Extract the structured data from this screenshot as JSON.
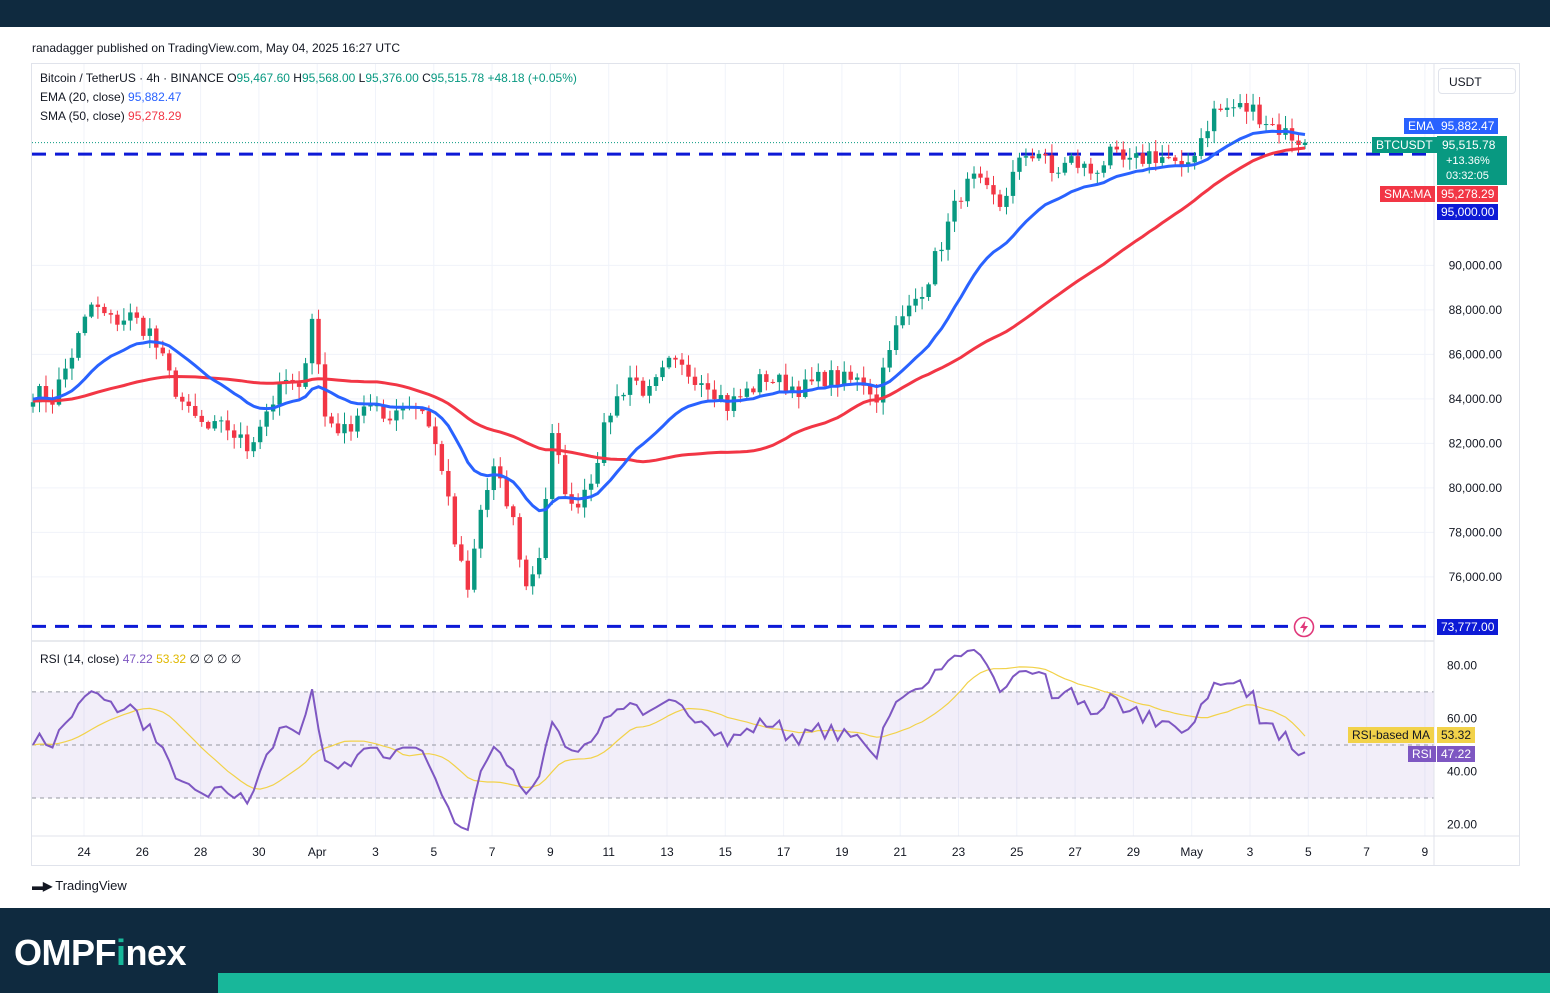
{
  "publisher_line": "ranadagger published on TradingView.com, May 04, 2025 16:27 UTC",
  "legend": {
    "symbol": "Bitcoin / TetherUS · 4h · BINANCE",
    "o_label": "O",
    "o": "95,467.60",
    "h_label": "H",
    "h": "95,568.00",
    "l_label": "L",
    "l": "95,376.00",
    "c_label": "C",
    "c": "95,515.78",
    "change": "+48.18 (+0.05%)",
    "ema_label": "EMA (20, close)",
    "ema_value": "95,882.47",
    "sma_label": "SMA (50, close)",
    "sma_value": "95,278.29",
    "rsi_label": "RSI (14, close)",
    "rsi_value": "47.22",
    "rsi_ma_value": "53.32",
    "rsi_extra": "∅ ∅ ∅ ∅"
  },
  "currency_unit": "USDT",
  "price_tags": {
    "ema_name": "EMA",
    "ema_value": "95,882.47",
    "symbol_name": "BTCUSDT",
    "last_price": "95,515.78",
    "pct_change": "+13.36%",
    "countdown": "03:32:05",
    "sma_name": "SMA:MA",
    "sma_value": "95,278.29",
    "resistance": "95,000.00",
    "support": "73,777.00",
    "rsi_ma_name": "RSI-based MA",
    "rsi_ma_value": "53.32",
    "rsi_name": "RSI",
    "rsi_value": "47.22"
  },
  "watermark": "TradingView",
  "brand": {
    "part1": "OMPF",
    "part2": "i",
    "part3": "nex"
  },
  "colors": {
    "bull": "#089981",
    "bear": "#f23645",
    "ema": "#2962ff",
    "sma": "#f23645",
    "level_line": "#0d1ad6",
    "rsi": "#7e57c2",
    "rsi_ma": "#f2d24a",
    "footer_bg": "#0f2a3f",
    "footer_accent": "#18b79a"
  },
  "chart_data": [
    {
      "type": "candlestick",
      "timeframe": "4h",
      "y_range": [
        74500,
        98000
      ],
      "y_ticks": [
        76000,
        78000,
        80000,
        82000,
        84000,
        86000,
        88000,
        90000
      ],
      "x_tick_labels": [
        "24",
        "26",
        "28",
        "30",
        "Apr",
        "3",
        "5",
        "7",
        "9",
        "11",
        "13",
        "15",
        "17",
        "19",
        "21",
        "23",
        "25",
        "27",
        "29",
        "May",
        "3",
        "5",
        "7",
        "9"
      ],
      "horizontal_levels": [
        95000,
        73777
      ],
      "price_path": [
        [
          0,
          84300
        ],
        [
          3,
          84000
        ],
        [
          6,
          86000
        ],
        [
          9,
          88200
        ],
        [
          12,
          87500
        ],
        [
          15,
          87700
        ],
        [
          18,
          87000
        ],
        [
          21,
          85000
        ],
        [
          24,
          83300
        ],
        [
          27,
          82600
        ],
        [
          30,
          82700
        ],
        [
          33,
          81800
        ],
        [
          36,
          83500
        ],
        [
          39,
          84800
        ],
        [
          41,
          84200
        ],
        [
          43,
          87800
        ],
        [
          45,
          83200
        ],
        [
          48,
          82500
        ],
        [
          51,
          83800
        ],
        [
          54,
          83100
        ],
        [
          57,
          83800
        ],
        [
          60,
          83600
        ],
        [
          63,
          81000
        ],
        [
          65,
          77500
        ],
        [
          67,
          75300
        ],
        [
          69,
          79000
        ],
        [
          71,
          80800
        ],
        [
          74,
          78500
        ],
        [
          76,
          75500
        ],
        [
          78,
          77000
        ],
        [
          80,
          82200
        ],
        [
          83,
          79000
        ],
        [
          86,
          80500
        ],
        [
          89,
          83500
        ],
        [
          92,
          85000
        ],
        [
          95,
          84200
        ],
        [
          98,
          85500
        ],
        [
          101,
          85200
        ],
        [
          104,
          84800
        ],
        [
          107,
          83700
        ],
        [
          110,
          84300
        ],
        [
          113,
          85000
        ],
        [
          116,
          84600
        ],
        [
          119,
          84500
        ],
        [
          122,
          85000
        ],
        [
          125,
          84800
        ],
        [
          128,
          84800
        ],
        [
          130,
          84100
        ],
        [
          132,
          86600
        ],
        [
          135,
          88000
        ],
        [
          138,
          89500
        ],
        [
          141,
          91800
        ],
        [
          143,
          93300
        ],
        [
          145,
          93800
        ],
        [
          147,
          93200
        ],
        [
          149,
          92700
        ],
        [
          151,
          94000
        ],
        [
          153,
          95000
        ],
        [
          155,
          95100
        ],
        [
          157,
          94100
        ],
        [
          160,
          94700
        ],
        [
          163,
          94200
        ],
        [
          166,
          94900
        ],
        [
          169,
          94500
        ],
        [
          172,
          95000
        ],
        [
          175,
          94800
        ],
        [
          177,
          94100
        ],
        [
          179,
          95200
        ],
        [
          182,
          96900
        ],
        [
          185,
          97100
        ],
        [
          188,
          97000
        ],
        [
          191,
          96300
        ],
        [
          194,
          95800
        ],
        [
          196,
          95500
        ]
      ],
      "ema20": {
        "start": 84000,
        "end": 95882.47
      },
      "sma50": {
        "start": 83900,
        "end": 95278.29
      },
      "last_price": 95515.78
    },
    {
      "type": "line",
      "name": "RSI (14, close)",
      "y_range": [
        14,
        85
      ],
      "y_ticks": [
        20,
        40,
        60,
        80
      ],
      "bands": [
        30,
        50,
        70
      ],
      "last_rsi": 47.22,
      "last_rsi_ma": 53.32
    }
  ]
}
